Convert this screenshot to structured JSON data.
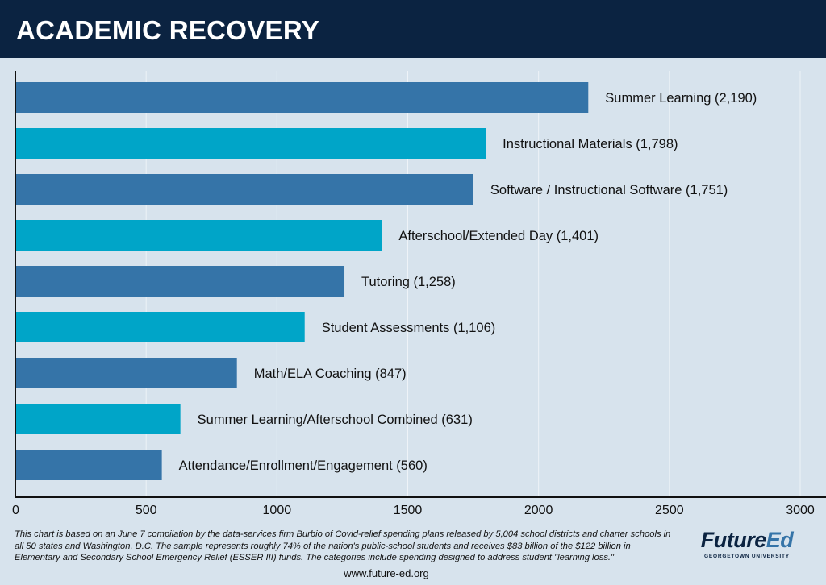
{
  "header": {
    "title": "ACADEMIC RECOVERY"
  },
  "chart_data": {
    "type": "bar",
    "orientation": "horizontal",
    "title": "ACADEMIC RECOVERY",
    "categories": [
      "Summer Learning",
      "Instructional Materials",
      "Software / Instructional Software",
      "Afterschool/Extended Day",
      "Tutoring",
      "Student Assessments",
      "Math/ELA Coaching",
      "Summer Learning/Afterschool Combined",
      "Attendance/Enrollment/Engagement"
    ],
    "values": [
      2190,
      1798,
      1751,
      1401,
      1258,
      1106,
      847,
      631,
      560
    ],
    "labels": [
      "Summer Learning (2,190)",
      "Instructional Materials (1,798)",
      "Software / Instructional Software (1,751)",
      "Afterschool/Extended Day (1,401)",
      "Tutoring (1,258)",
      "Student Assessments (1,106)",
      "Math/ELA Coaching (847)",
      "Summer Learning/Afterschool Combined (631)",
      "Attendance/Enrollment/Engagement (560)"
    ],
    "colors": [
      "#3574a8",
      "#00a5c8"
    ],
    "xlim": [
      0,
      3000
    ],
    "xticks": [
      "0",
      "500",
      "1000",
      "1500",
      "2000",
      "2500",
      "3000"
    ],
    "grid": true,
    "legend": "none"
  },
  "footer": {
    "note": "This chart is based on an June 7 compilation by the data-services firm Burbio of Covid-relief spending plans released by 5,004 school districts and charter schools in all 50 states and Washington, D.C. The sample represents roughly 74% of the nation's public-school students and receives $83 billion of the $122 billion in Elementary and Secondary School Emergency Relief (ESSER III) funds. The categories include spending designed to address student \"learning loss.\"",
    "url": "www.future-ed.org",
    "logo": {
      "part1": "Future",
      "part2": "Ed",
      "sub": "GEORGETOWN UNIVERSITY"
    }
  }
}
